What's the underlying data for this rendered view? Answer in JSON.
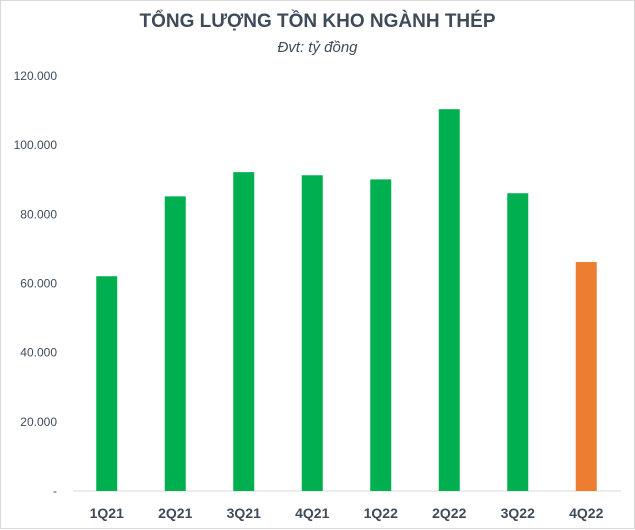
{
  "chart_data": {
    "type": "bar",
    "title": "TỔNG LƯỢNG TỒN KHO NGÀNH THÉP",
    "subtitle": "Đvt: tỷ đồng",
    "categories": [
      "1Q21",
      "2Q21",
      "3Q21",
      "4Q21",
      "1Q22",
      "2Q22",
      "3Q22",
      "4Q22"
    ],
    "values": [
      62100,
      85200,
      92200,
      91300,
      90100,
      110400,
      86100,
      66200
    ],
    "colors": [
      "#00b050",
      "#00b050",
      "#00b050",
      "#00b050",
      "#00b050",
      "#00b050",
      "#00b050",
      "#ed7d31"
    ],
    "ylim": [
      0,
      120000
    ],
    "yticks": [
      0,
      20000,
      40000,
      60000,
      80000,
      100000,
      120000
    ],
    "ytick_labels": [
      "-",
      "20.000",
      "40.000",
      "60.000",
      "80.000",
      "100.000",
      "120.000"
    ],
    "grid": false,
    "legend": "none"
  }
}
